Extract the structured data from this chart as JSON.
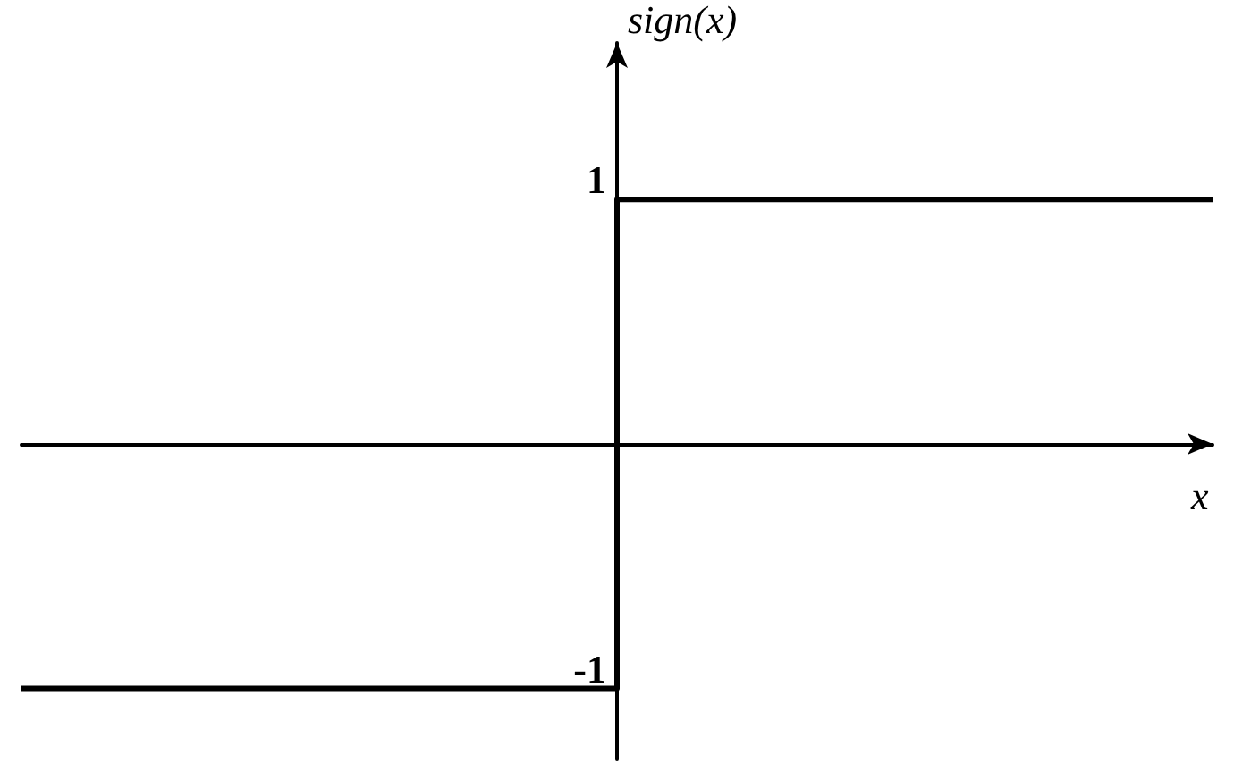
{
  "chart_data": {
    "type": "step",
    "xlabel": "x",
    "ylabel": "sign(x)",
    "categories": [
      null,
      null
    ],
    "series": [
      {
        "color": "#000000",
        "values": [
          -1,
          1
        ]
      }
    ],
    "ylim": [
      -1.29,
      1.64
    ],
    "yticks": [
      1,
      -1
    ],
    "grid": false,
    "marker": "none",
    "line_style": "solid"
  }
}
